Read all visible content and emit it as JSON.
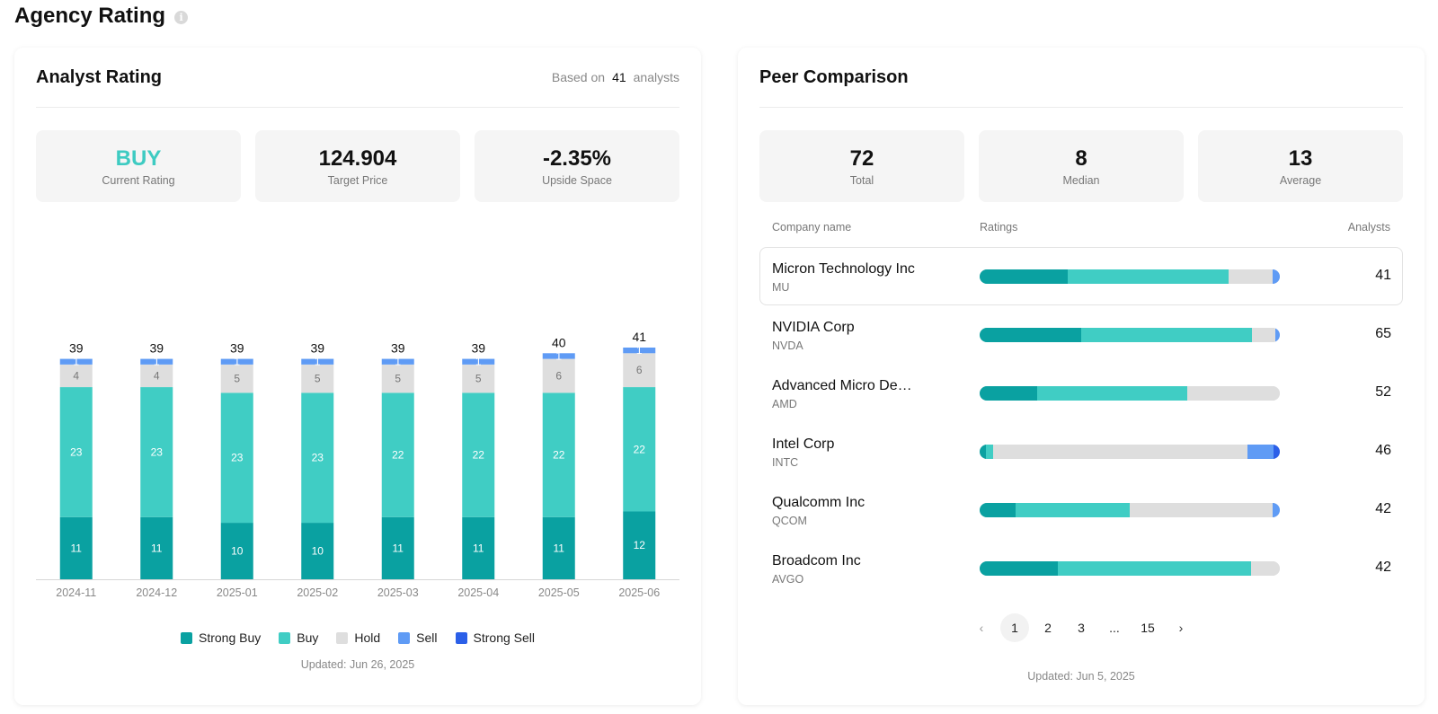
{
  "page": {
    "title": "Agency Rating",
    "info_icon": "i"
  },
  "colors": {
    "strong_buy": "#0aa1a1",
    "buy": "#40cdc4",
    "hold": "#dedede",
    "sell": "#5f9bf5",
    "strong_sell": "#2b5fe8"
  },
  "analyst": {
    "title": "Analyst Rating",
    "based_on_prefix": "Based on",
    "based_on_count": "41",
    "based_on_suffix": "analysts",
    "stats": {
      "rating_value": "BUY",
      "rating_label": "Current Rating",
      "target_value": "124.904",
      "target_label": "Target Price",
      "upside_value": "-2.35%",
      "upside_label": "Upside Space"
    },
    "updated": "Updated: Jun 26, 2025"
  },
  "chart_data": {
    "type": "bar",
    "stacked": true,
    "title": "",
    "xlabel": "",
    "ylabel": "",
    "categories": [
      "2024-11",
      "2024-12",
      "2025-01",
      "2025-02",
      "2025-03",
      "2025-04",
      "2025-05",
      "2025-06"
    ],
    "series": [
      {
        "name": "Strong Buy",
        "key": "strong_buy",
        "values": [
          11,
          11,
          10,
          10,
          11,
          11,
          11,
          12
        ]
      },
      {
        "name": "Buy",
        "key": "buy",
        "values": [
          23,
          23,
          23,
          23,
          22,
          22,
          22,
          22
        ]
      },
      {
        "name": "Hold",
        "key": "hold",
        "values": [
          4,
          4,
          5,
          5,
          5,
          5,
          6,
          6
        ]
      },
      {
        "name": "Sell",
        "key": "sell",
        "values": [
          1,
          1,
          1,
          1,
          1,
          1,
          1,
          1
        ]
      },
      {
        "name": "Strong Sell",
        "key": "strong_sell",
        "values": [
          0,
          0,
          0,
          0,
          0,
          0,
          0,
          0
        ]
      }
    ],
    "totals": [
      39,
      39,
      39,
      39,
      39,
      39,
      40,
      41
    ],
    "legend": [
      "Strong Buy",
      "Buy",
      "Hold",
      "Sell",
      "Strong Sell"
    ],
    "legend_position": "bottom",
    "ylim": [
      0,
      41
    ],
    "grid": false
  },
  "peer": {
    "title": "Peer Comparison",
    "stats": {
      "total_value": "72",
      "total_label": "Total",
      "median_value": "8",
      "median_label": "Median",
      "average_value": "13",
      "average_label": "Average"
    },
    "columns": {
      "company": "Company name",
      "ratings": "Ratings",
      "analysts": "Analysts"
    },
    "rows": [
      {
        "name": "Micron Technology Inc",
        "ticker": "MU",
        "analysts": "41",
        "split": [
          12,
          22,
          6,
          1,
          0
        ]
      },
      {
        "name": "NVIDIA Corp",
        "ticker": "NVDA",
        "analysts": "65",
        "split": [
          22,
          37,
          5,
          1,
          0
        ]
      },
      {
        "name": "Advanced Micro De…",
        "ticker": "AMD",
        "analysts": "52",
        "split": [
          10,
          26,
          16,
          0,
          0
        ]
      },
      {
        "name": "Intel Corp",
        "ticker": "INTC",
        "analysts": "46",
        "split": [
          1,
          1,
          39,
          4,
          1
        ]
      },
      {
        "name": "Qualcomm Inc",
        "ticker": "QCOM",
        "analysts": "42",
        "split": [
          5,
          16,
          20,
          1,
          0
        ]
      },
      {
        "name": "Broadcom Inc",
        "ticker": "AVGO",
        "analysts": "42",
        "split": [
          11,
          27,
          4,
          0,
          0
        ]
      }
    ],
    "pagination": {
      "prev": "‹",
      "pages": [
        "1",
        "2",
        "3",
        "...",
        "15"
      ],
      "current": "1",
      "next": "›"
    },
    "updated": "Updated: Jun 5, 2025"
  }
}
